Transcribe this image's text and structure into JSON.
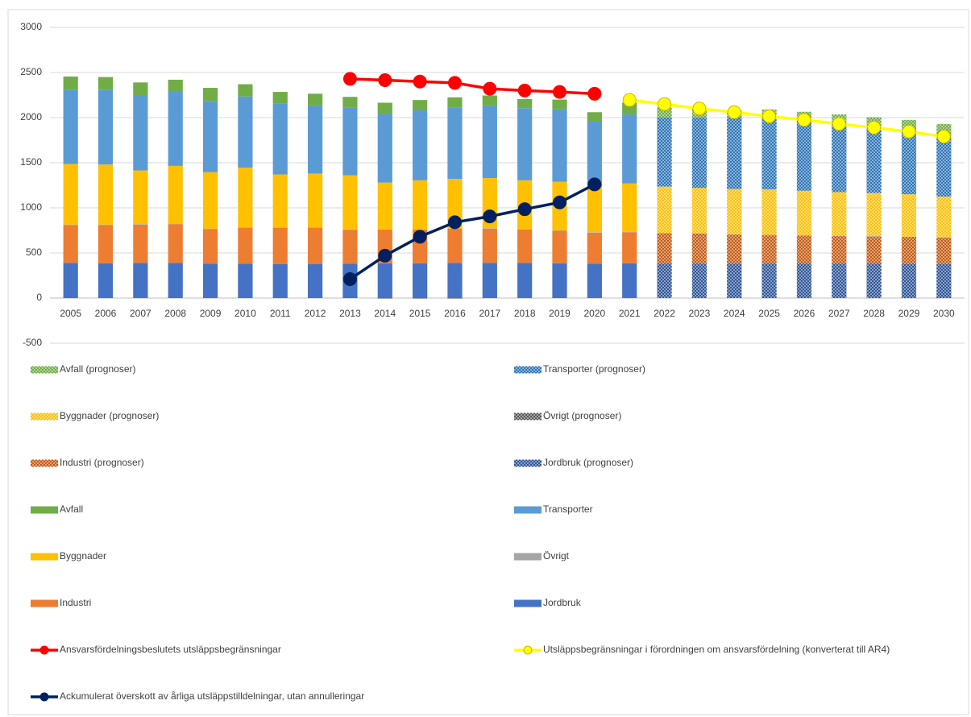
{
  "chart_data": {
    "type": "bar",
    "categories": [
      "2005",
      "2006",
      "2007",
      "2008",
      "2009",
      "2010",
      "2011",
      "2012",
      "2013",
      "2014",
      "2015",
      "2016",
      "2017",
      "2018",
      "2019",
      "2020",
      "2021",
      "2022",
      "2023",
      "2024",
      "2025",
      "2026",
      "2027",
      "2028",
      "2029",
      "2030"
    ],
    "ylim": [
      -500,
      3000
    ],
    "yticks": [
      -500,
      0,
      500,
      1000,
      1500,
      2000,
      2500,
      3000
    ],
    "grid": true,
    "series": [
      {
        "name": "Avfall (prognoser)",
        "type": "bar",
        "pattern": "dots",
        "color": "#70ad47",
        "values": [
          null,
          null,
          null,
          null,
          null,
          null,
          null,
          null,
          null,
          null,
          null,
          null,
          null,
          null,
          null,
          null,
          null,
          120,
          100,
          80,
          105,
          105,
          110,
          110,
          110,
          155
        ]
      },
      {
        "name": "Transporter (prognoser)",
        "type": "bar",
        "pattern": "dots",
        "color": "#2e75b6",
        "values": [
          null,
          null,
          null,
          null,
          null,
          null,
          null,
          null,
          null,
          null,
          null,
          null,
          null,
          null,
          null,
          null,
          null,
          765,
          780,
          790,
          780,
          770,
          750,
          730,
          715,
          650
        ]
      },
      {
        "name": "Byggnader (prognoser)",
        "type": "bar",
        "pattern": "dots",
        "color": "#ffc000",
        "values": [
          null,
          null,
          null,
          null,
          null,
          null,
          null,
          null,
          null,
          null,
          null,
          null,
          null,
          null,
          null,
          null,
          null,
          515,
          505,
          505,
          505,
          495,
          485,
          480,
          470,
          455
        ]
      },
      {
        "name": "Övrigt (prognoser)",
        "type": "bar",
        "pattern": "dots",
        "color": "#595959",
        "values": [
          null,
          null,
          null,
          null,
          null,
          null,
          null,
          null,
          null,
          null,
          null,
          null,
          null,
          null,
          null,
          null,
          null,
          5,
          5,
          5,
          5,
          5,
          5,
          5,
          5,
          5
        ]
      },
      {
        "name": "Industri (prognoser)",
        "type": "bar",
        "pattern": "dots",
        "color": "#c55a11",
        "values": [
          null,
          null,
          null,
          null,
          null,
          null,
          null,
          null,
          null,
          null,
          null,
          null,
          null,
          null,
          null,
          null,
          null,
          335,
          330,
          320,
          315,
          310,
          305,
          300,
          300,
          290
        ]
      },
      {
        "name": "Jordbruk (prognoser)",
        "type": "bar",
        "pattern": "dots",
        "color": "#2f5597",
        "values": [
          null,
          null,
          null,
          null,
          null,
          null,
          null,
          null,
          null,
          null,
          null,
          null,
          null,
          null,
          null,
          null,
          null,
          380,
          380,
          380,
          380,
          380,
          380,
          380,
          375,
          375
        ]
      },
      {
        "name": "Avfall",
        "type": "bar",
        "color": "#70ad47",
        "values": [
          150,
          145,
          140,
          130,
          145,
          135,
          130,
          130,
          120,
          125,
          115,
          115,
          110,
          100,
          105,
          100,
          130,
          null,
          null,
          null,
          null,
          null,
          null,
          null,
          null,
          null
        ]
      },
      {
        "name": "Transporter",
        "type": "bar",
        "color": "#5b9bd5",
        "values": [
          820,
          825,
          835,
          825,
          790,
          790,
          785,
          755,
          750,
          760,
          775,
          790,
          805,
          800,
          805,
          725,
          765,
          null,
          null,
          null,
          null,
          null,
          null,
          null,
          null,
          null
        ]
      },
      {
        "name": "Byggnader",
        "type": "bar",
        "color": "#ffc000",
        "values": [
          670,
          665,
          595,
          640,
          625,
          660,
          585,
          595,
          600,
          520,
          545,
          550,
          555,
          540,
          540,
          505,
          535,
          null,
          null,
          null,
          null,
          null,
          null,
          null,
          null,
          null
        ]
      },
      {
        "name": "Övrigt",
        "type": "bar",
        "color": "#a5a5a5",
        "values": [
          5,
          5,
          5,
          5,
          5,
          5,
          5,
          5,
          5,
          -10,
          -10,
          -10,
          5,
          5,
          5,
          5,
          5,
          null,
          null,
          null,
          null,
          null,
          null,
          null,
          null,
          null
        ]
      },
      {
        "name": "Industri",
        "type": "bar",
        "color": "#ed7d31",
        "values": [
          420,
          425,
          425,
          430,
          385,
          400,
          405,
          405,
          375,
          375,
          375,
          380,
          380,
          370,
          360,
          345,
          345,
          null,
          null,
          null,
          null,
          null,
          null,
          null,
          null,
          null
        ]
      },
      {
        "name": "Jordbruk",
        "type": "bar",
        "color": "#4472c4",
        "values": [
          390,
          385,
          390,
          390,
          380,
          380,
          375,
          375,
          380,
          385,
          385,
          390,
          390,
          390,
          385,
          380,
          385,
          null,
          null,
          null,
          null,
          null,
          null,
          null,
          null,
          null
        ]
      },
      {
        "name": "Ansvarsfördelningsbeslutets utsläppsbegränsningar",
        "type": "line",
        "color": "#ff0000",
        "values": [
          null,
          null,
          null,
          null,
          null,
          null,
          null,
          null,
          2430,
          2415,
          2400,
          2385,
          2320,
          2300,
          2285,
          2265,
          null,
          null,
          null,
          null,
          null,
          null,
          null,
          null,
          null,
          null
        ]
      },
      {
        "name": "Utsläppsbegränsningar i förordningen om ansvarsfördelning (konverterat till AR4)",
        "type": "line",
        "color": "#ffff00",
        "values": [
          null,
          null,
          null,
          null,
          null,
          null,
          null,
          null,
          null,
          null,
          null,
          null,
          null,
          null,
          null,
          null,
          2195,
          2150,
          2100,
          2060,
          2015,
          1975,
          1930,
          1890,
          1845,
          1790
        ]
      },
      {
        "name": "Ackumulerat överskott av årliga utsläppstilldelningar, utan annulleringar",
        "type": "line",
        "color": "#002060",
        "values": [
          null,
          null,
          null,
          null,
          null,
          null,
          null,
          null,
          210,
          470,
          680,
          840,
          905,
          985,
          1060,
          1260,
          null,
          null,
          null,
          null,
          null,
          null,
          null,
          null,
          null,
          null
        ]
      }
    ]
  }
}
